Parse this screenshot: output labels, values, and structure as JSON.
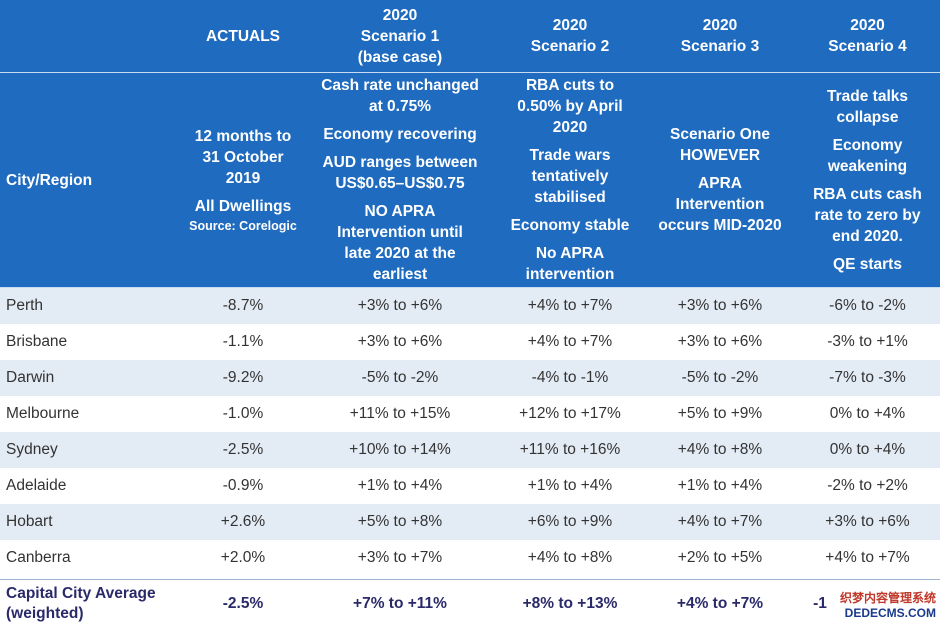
{
  "header": {
    "city_label": "City/Region",
    "actuals": {
      "title": "ACTUALS",
      "lines": [
        "12 months to",
        "31 October",
        "2019"
      ],
      "dwellings": "All Dwellings",
      "source": "Source: Corelogic"
    },
    "scenario1": {
      "title": [
        "2020",
        "Scenario 1",
        "(base case)"
      ],
      "blocks": [
        [
          "Cash rate unchanged",
          "at 0.75%"
        ],
        [
          "Economy recovering"
        ],
        [
          "AUD ranges between",
          "US$0.65–US$0.75"
        ],
        [
          "NO APRA",
          "Intervention until",
          "late 2020 at the",
          "earliest"
        ]
      ]
    },
    "scenario2": {
      "title": [
        "2020",
        "Scenario 2"
      ],
      "blocks": [
        [
          "RBA cuts to",
          "0.50% by April",
          "2020"
        ],
        [
          "Trade wars",
          "tentatively",
          "stabilised"
        ],
        [
          "Economy stable"
        ],
        [
          "No APRA",
          "intervention"
        ]
      ]
    },
    "scenario3": {
      "title": [
        "2020",
        "Scenario 3"
      ],
      "blocks": [
        [
          "Scenario One",
          "HOWEVER"
        ],
        [
          "APRA",
          "Intervention",
          "occurs MID-2020"
        ]
      ]
    },
    "scenario4": {
      "title": [
        "2020",
        "Scenario 4"
      ],
      "blocks": [
        [
          "Trade talks",
          "collapse"
        ],
        [
          "Economy",
          "weakening"
        ],
        [
          "RBA cuts cash",
          "rate to zero by",
          "end 2020."
        ],
        [
          "QE starts"
        ]
      ]
    }
  },
  "rows": [
    {
      "city": "Perth",
      "actual": "-8.7%",
      "s1": "+3% to +6%",
      "s2": "+4% to +7%",
      "s3": "+3% to +6%",
      "s4": "-6% to -2%"
    },
    {
      "city": "Brisbane",
      "actual": "-1.1%",
      "s1": "+3% to +6%",
      "s2": "+4% to +7%",
      "s3": "+3% to +6%",
      "s4": "-3% to +1%"
    },
    {
      "city": "Darwin",
      "actual": "-9.2%",
      "s1": "-5% to -2%",
      "s2": "-4% to -1%",
      "s3": "-5% to -2%",
      "s4": "-7% to -3%"
    },
    {
      "city": "Melbourne",
      "actual": "-1.0%",
      "s1": "+11% to +15%",
      "s2": "+12% to +17%",
      "s3": "+5% to +9%",
      "s4": "0% to +4%"
    },
    {
      "city": "Sydney",
      "actual": "-2.5%",
      "s1": "+10% to +14%",
      "s2": "+11% to +16%",
      "s3": "+4% to +8%",
      "s4": "0% to +4%"
    },
    {
      "city": "Adelaide",
      "actual": "-0.9%",
      "s1": "+1% to +4%",
      "s2": "+1% to +4%",
      "s3": "+1% to +4%",
      "s4": "-2% to +2%"
    },
    {
      "city": "Hobart",
      "actual": "+2.6%",
      "s1": "+5% to +8%",
      "s2": "+6% to +9%",
      "s3": "+4% to +7%",
      "s4": "+3% to +6%"
    },
    {
      "city": "Canberra",
      "actual": "+2.0%",
      "s1": "+3% to +7%",
      "s2": "+4% to +8%",
      "s3": "+2% to +5%",
      "s4": "+4% to +7%"
    }
  ],
  "total": {
    "city": [
      "Capital City Average",
      "(weighted)"
    ],
    "actual": "-2.5%",
    "s1": "+7% to +11%",
    "s2": "+8% to +13%",
    "s3": "+4% to +7%",
    "s4": "-1"
  },
  "watermark": {
    "line1": "织梦内容管理系统",
    "line2": "DEDECMS.COM"
  }
}
